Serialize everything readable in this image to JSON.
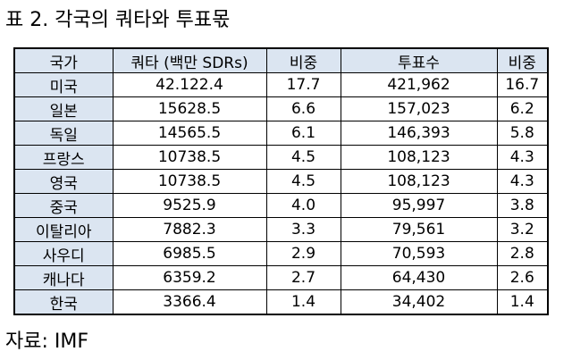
{
  "title": "표 2. 각국의 쿼타와 투표몫",
  "table": {
    "header": [
      "국가",
      "쿼타 (백만 SDRs)",
      "비중",
      "투표수",
      "비중"
    ],
    "rows": [
      [
        "미국",
        "42.122.4",
        "17.7",
        "421,962",
        "16.7"
      ],
      [
        "일본",
        "15628.5",
        "6.6",
        "157,023",
        "6.2"
      ],
      [
        "독일",
        "14565.5",
        "6.1",
        "146,393",
        "5.8"
      ],
      [
        "프랑스",
        "10738.5",
        "4.5",
        "108,123",
        "4.3"
      ],
      [
        "영국",
        "10738.5",
        "4.5",
        "108,123",
        "4.3"
      ],
      [
        "중국",
        "9525.9",
        "4.0",
        "95,997",
        "3.8"
      ],
      [
        "이탈리아",
        "7882.3",
        "3.3",
        "79,561",
        "3.2"
      ],
      [
        "사우디",
        "6985.5",
        "2.9",
        "70,593",
        "2.8"
      ],
      [
        "캐나다",
        "6359.2",
        "2.7",
        "64,430",
        "2.6"
      ],
      [
        "한국",
        "3366.4",
        "1.4",
        "34,402",
        "1.4"
      ]
    ]
  },
  "source": "자료: IMF"
}
